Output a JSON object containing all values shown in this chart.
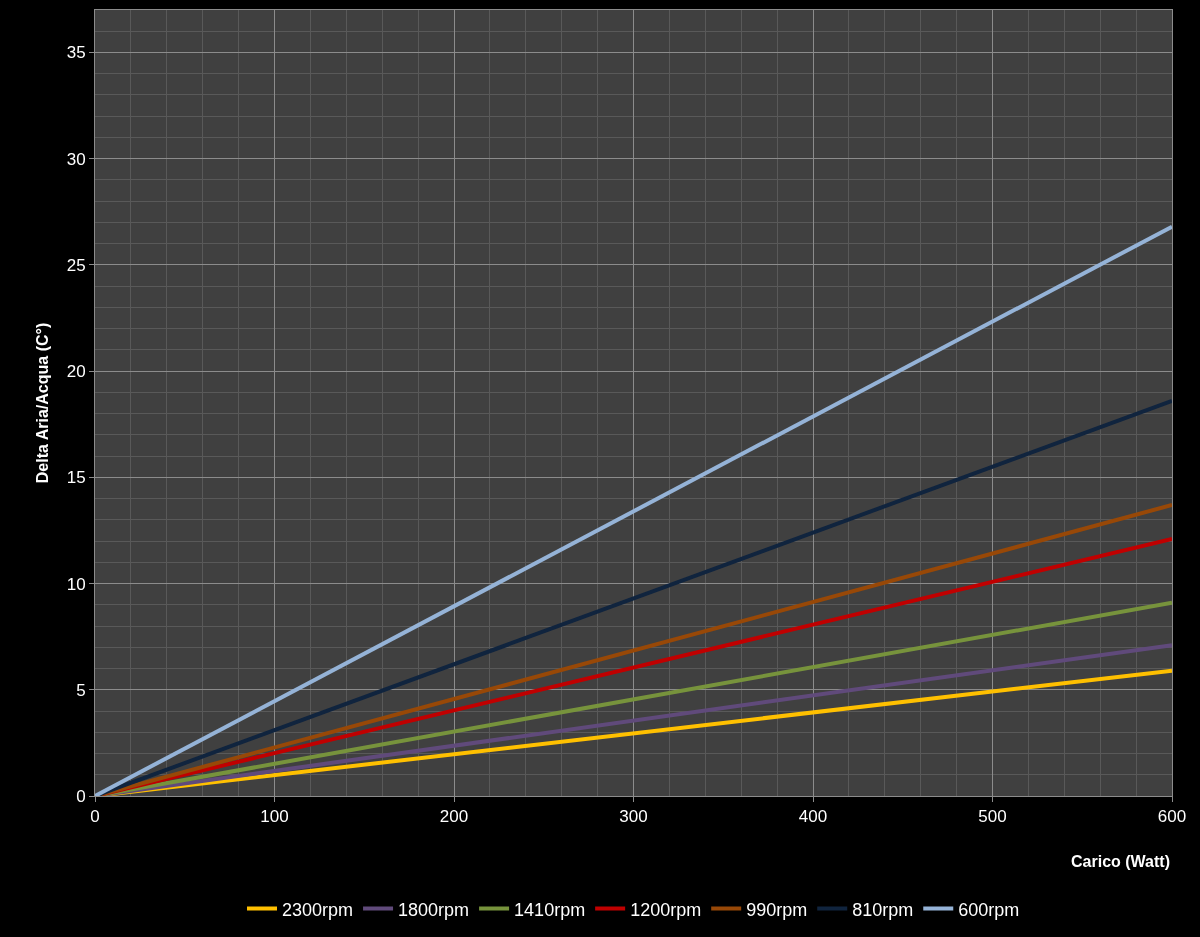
{
  "chart_data": {
    "type": "line",
    "xlabel": "Carico (Watt)",
    "ylabel": "Delta Aria/Acqua (C°)",
    "x": [
      0,
      600
    ],
    "series": [
      {
        "name": "2300rpm",
        "color": "#ffc000",
        "values": [
          0,
          5.9
        ]
      },
      {
        "name": "1800rpm",
        "color": "#604a7b",
        "values": [
          0,
          7.1
        ]
      },
      {
        "name": "1410rpm",
        "color": "#77933c",
        "values": [
          0,
          9.1
        ]
      },
      {
        "name": "1200rpm",
        "color": "#c00000",
        "values": [
          0,
          12.1
        ]
      },
      {
        "name": "990rpm",
        "color": "#984807",
        "values": [
          0,
          13.7
        ]
      },
      {
        "name": "810rpm",
        "color": "#10243e",
        "values": [
          0,
          18.6
        ]
      },
      {
        "name": "600rpm",
        "color": "#95b3d7",
        "values": [
          0,
          26.8
        ]
      }
    ],
    "xlim": [
      0,
      600
    ],
    "xticks": [
      0,
      100,
      200,
      300,
      400,
      500,
      600
    ],
    "ylim": [
      0,
      37
    ],
    "yticks": [
      0,
      5,
      10,
      15,
      20,
      25,
      30,
      35
    ],
    "grid": true,
    "legend": "bottom",
    "marker": "none",
    "line_style": "solid"
  }
}
